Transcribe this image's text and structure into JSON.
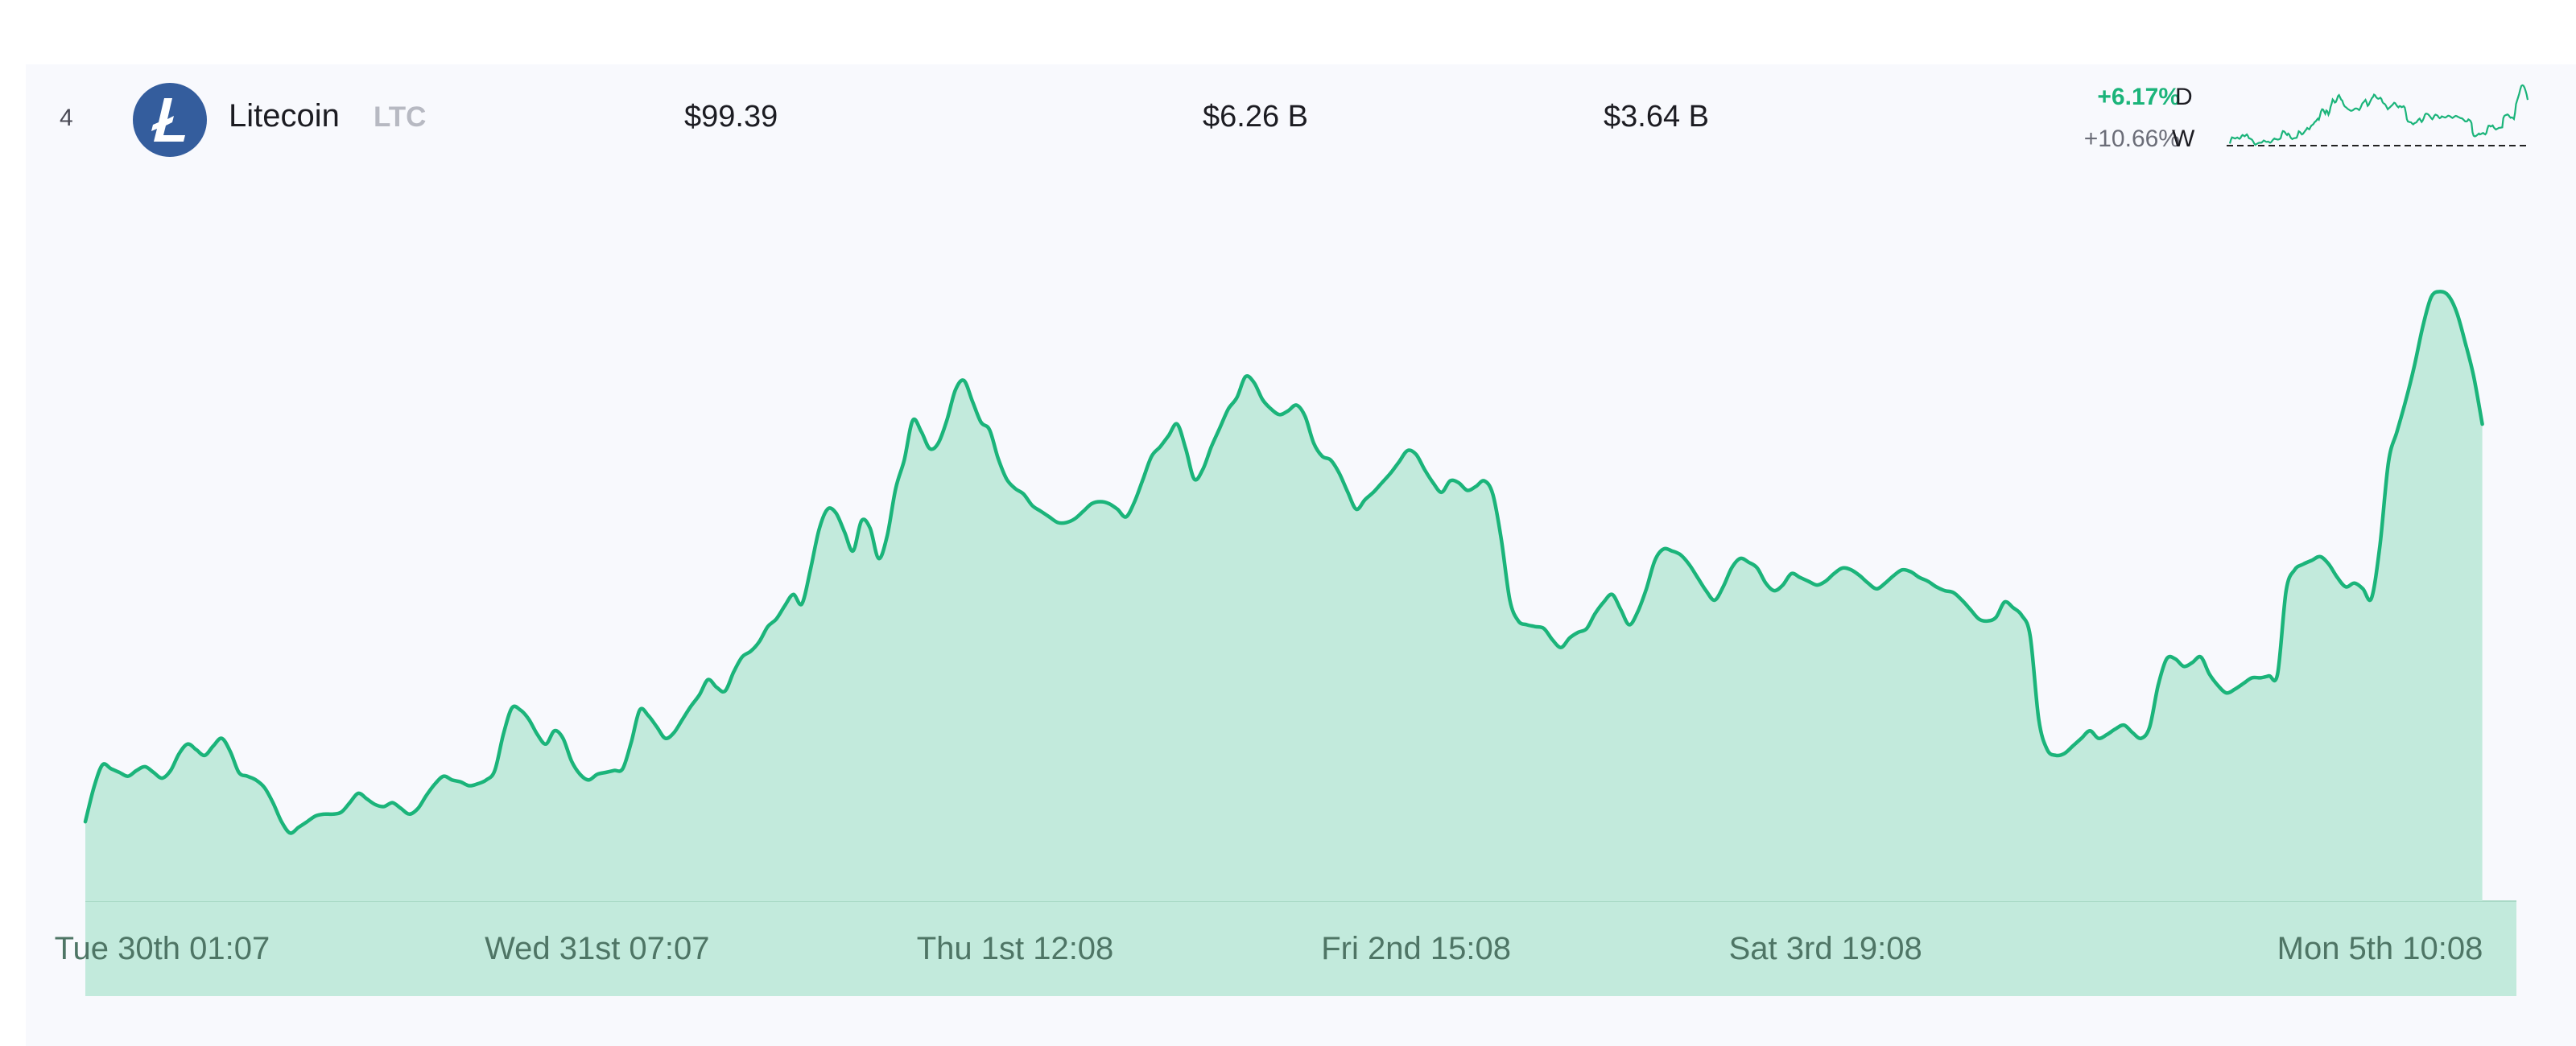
{
  "row": {
    "rank": "4",
    "name": "Litecoin",
    "symbol": "LTC",
    "price": "$99.39",
    "market_cap": "$6.26 B",
    "volume": "$3.64 B",
    "change_day": "+6.17%",
    "change_week": "+10.66%",
    "day_label": "D",
    "week_label": "W",
    "logo_icon": "litecoin-logo-icon"
  },
  "colors": {
    "accent": "#1bb47a",
    "fill": "#c2eadc",
    "logo_bg": "#345d9d",
    "positive": "#1bb47a"
  },
  "chart_data": {
    "type": "area",
    "x_tick_labels": [
      "Tue 30th 01:07",
      "Wed 31st 07:07",
      "Thu 1st 12:08",
      "Fri 2nd 15:08",
      "Sat 3rd 19:08",
      "Mon 5th 10:08"
    ],
    "x_tick_positions": [
      9,
      60,
      109,
      156,
      204,
      269
    ],
    "x_range": [
      0,
      285
    ],
    "ylim": [
      76,
      110
    ],
    "grid": false,
    "values": [
      80.2,
      82.0,
      83.2,
      83.0,
      82.8,
      82.6,
      82.9,
      83.1,
      82.8,
      82.5,
      82.9,
      83.8,
      84.3,
      84.0,
      83.7,
      84.2,
      84.6,
      83.9,
      82.8,
      82.6,
      82.4,
      82.0,
      81.2,
      80.2,
      79.6,
      79.9,
      80.2,
      80.5,
      80.6,
      80.6,
      80.7,
      81.2,
      81.7,
      81.4,
      81.1,
      81.0,
      81.2,
      80.9,
      80.6,
      80.9,
      81.6,
      82.2,
      82.6,
      82.4,
      82.3,
      82.1,
      82.2,
      82.4,
      82.9,
      84.8,
      86.2,
      86.1,
      85.6,
      84.8,
      84.3,
      85.0,
      84.6,
      83.4,
      82.7,
      82.4,
      82.7,
      82.8,
      82.9,
      83.0,
      84.4,
      86.1,
      85.8,
      85.2,
      84.6,
      84.9,
      85.6,
      86.3,
      86.9,
      87.7,
      87.3,
      87.1,
      88.1,
      88.9,
      89.2,
      89.7,
      90.5,
      90.9,
      91.6,
      92.2,
      91.7,
      93.5,
      95.6,
      96.7,
      96.5,
      95.5,
      94.5,
      96.1,
      95.7,
      94.1,
      95.3,
      97.8,
      99.3,
      101.4,
      100.8,
      99.9,
      100.2,
      101.4,
      103.0,
      103.5,
      102.4,
      101.3,
      100.9,
      99.4,
      98.3,
      97.8,
      97.5,
      96.9,
      96.6,
      96.3,
      96.0,
      96.0,
      96.2,
      96.6,
      97.0,
      97.1,
      97.0,
      96.7,
      96.3,
      97.1,
      98.3,
      99.5,
      100.0,
      100.6,
      101.2,
      99.9,
      98.3,
      98.8,
      100.0,
      101.0,
      102.0,
      102.6,
      103.7,
      103.4,
      102.5,
      102.0,
      101.7,
      101.9,
      102.2,
      101.6,
      100.2,
      99.5,
      99.3,
      98.6,
      97.6,
      96.7,
      97.2,
      97.6,
      98.1,
      98.6,
      99.2,
      99.8,
      99.6,
      98.8,
      98.1,
      97.6,
      98.2,
      98.1,
      97.7,
      97.9,
      98.2,
      97.5,
      95.1,
      91.9,
      90.8,
      90.6,
      90.5,
      90.4,
      89.8,
      89.4,
      89.9,
      90.2,
      90.4,
      91.2,
      91.8,
      92.2,
      91.4,
      90.6,
      91.3,
      92.5,
      94.0,
      94.6,
      94.5,
      94.3,
      93.8,
      93.1,
      92.4,
      91.9,
      92.6,
      93.6,
      94.1,
      93.9,
      93.6,
      92.8,
      92.4,
      92.7,
      93.3,
      93.1,
      92.9,
      92.7,
      92.9,
      93.3,
      93.6,
      93.5,
      93.2,
      92.8,
      92.5,
      92.8,
      93.2,
      93.5,
      93.4,
      93.1,
      92.9,
      92.6,
      92.4,
      92.3,
      91.9,
      91.4,
      90.9,
      90.8,
      91.0,
      91.8,
      91.5,
      91.1,
      90.0,
      85.6,
      84.0,
      83.7,
      83.8,
      84.2,
      84.6,
      85.0,
      84.6,
      84.8,
      85.1,
      85.3,
      84.9,
      84.6,
      85.2,
      87.4,
      88.8,
      88.8,
      88.4,
      88.6,
      88.9,
      88.0,
      87.4,
      87.0,
      87.2,
      87.5,
      87.8,
      87.8,
      87.9,
      88.0,
      92.4,
      93.5,
      93.8,
      94.0,
      94.2,
      93.8,
      93.1,
      92.6,
      92.8,
      92.5,
      92.0,
      94.8,
      99.2,
      100.8,
      102.4,
      104.2,
      106.3,
      107.9,
      108.2,
      108.0,
      107.1,
      105.5,
      103.7,
      101.2
    ]
  }
}
